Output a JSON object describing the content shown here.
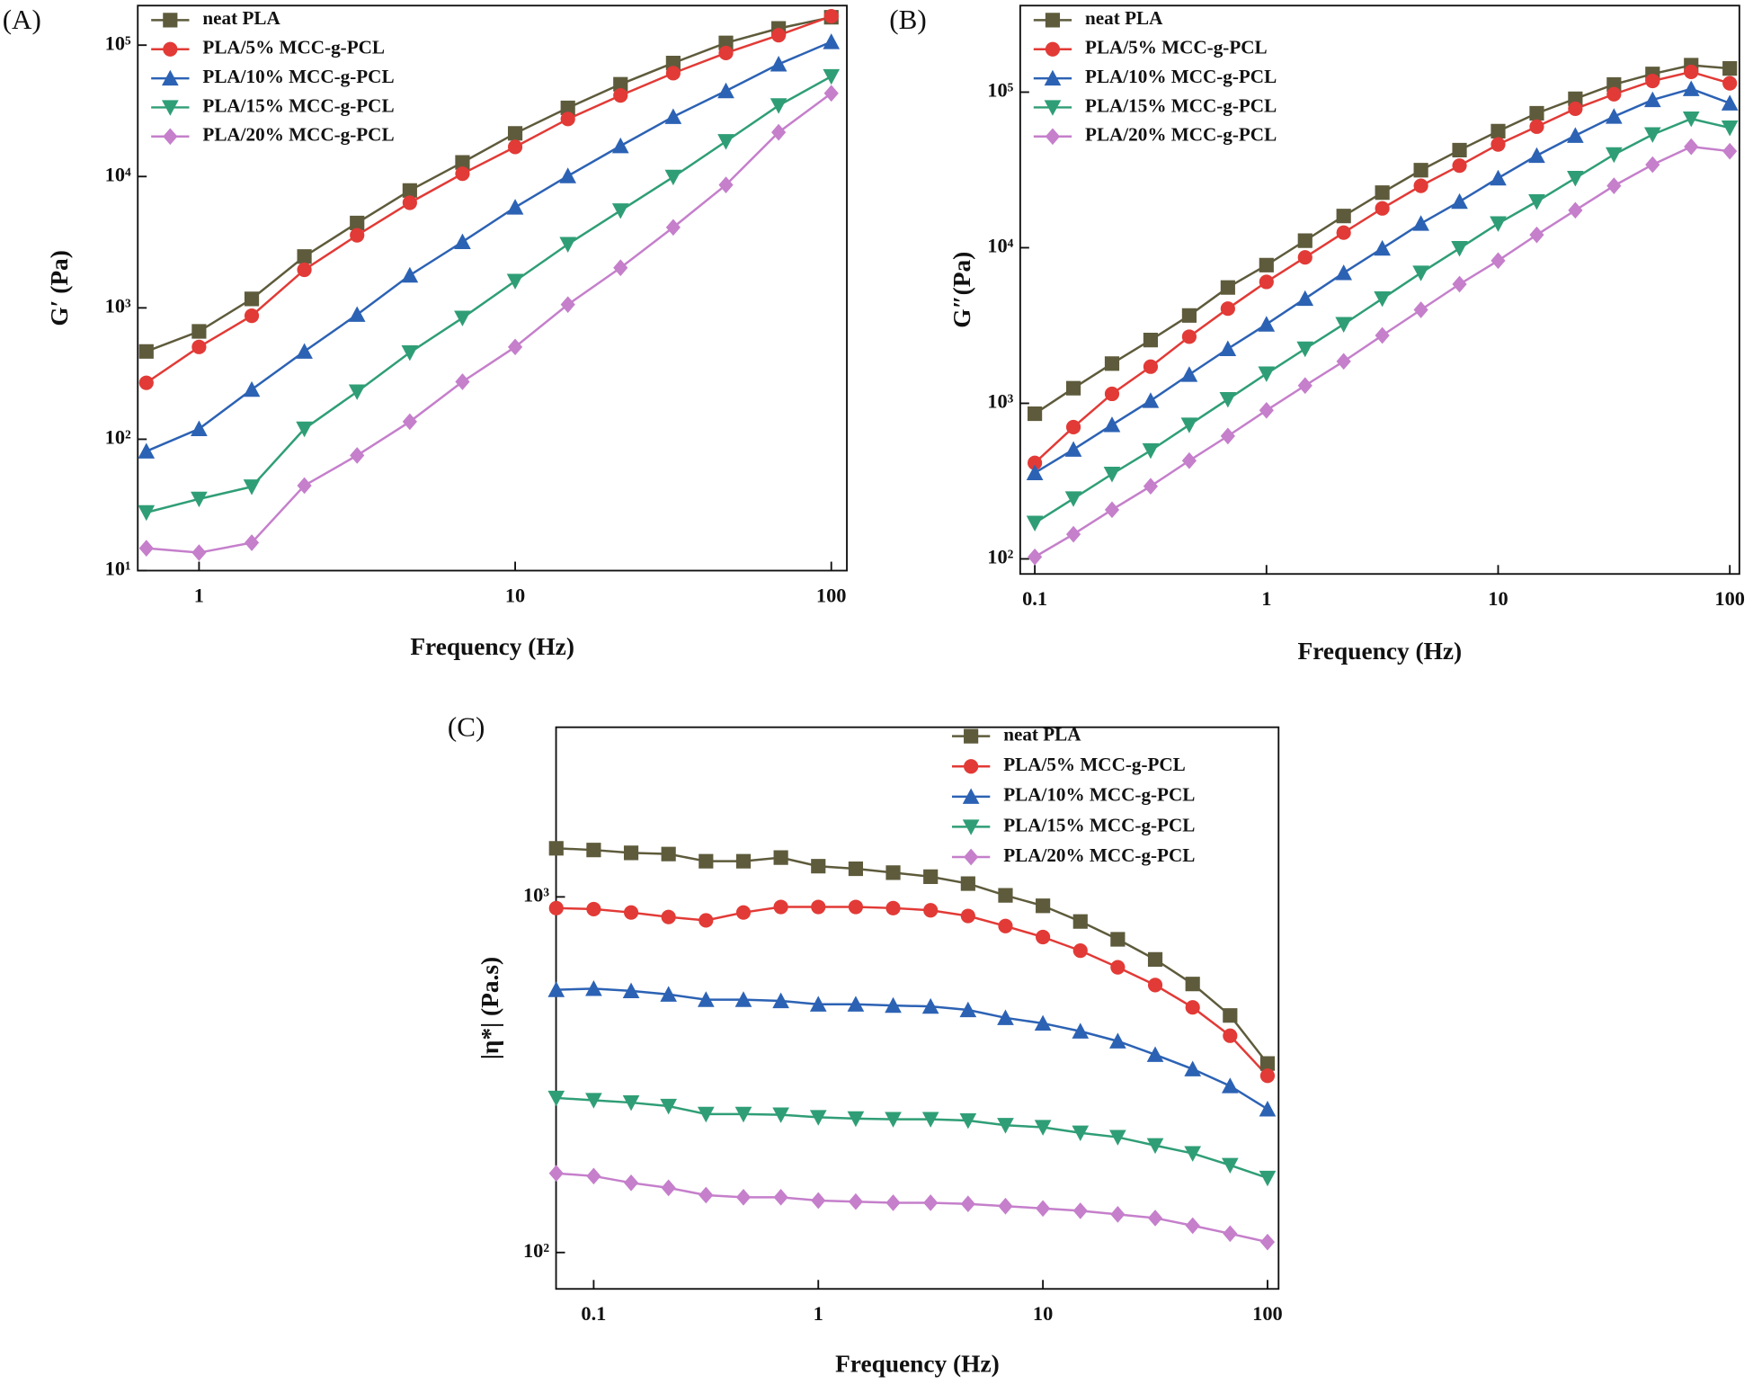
{
  "chart_data": [
    {
      "type": "line",
      "panel_label": "(A)",
      "x_label": "Frequency (Hz)",
      "y_label": "G′ (Pa)",
      "x_scale": "log",
      "y_scale": "log",
      "legend": "upper left",
      "xlim": [
        0.64,
        112
      ],
      "ylim": [
        10,
        200000
      ],
      "xticks": [
        1,
        10,
        100
      ],
      "yticks": [
        {
          "value": 10,
          "label": "10¹"
        },
        {
          "value": 100,
          "label": "10²"
        },
        {
          "value": 1000,
          "label": "10³"
        },
        {
          "value": 10000,
          "label": "10⁴"
        },
        {
          "value": 100000,
          "label": "10⁵"
        }
      ],
      "x": [
        0.6813,
        1,
        1.468,
        2.154,
        3.162,
        4.642,
        6.813,
        10,
        14.68,
        21.54,
        31.62,
        46.42,
        68.13,
        100
      ],
      "series": [
        {
          "name": "neat PLA",
          "color": "#5e5b3c",
          "marker": "square",
          "values": [
            466,
            662,
            1170,
            2460,
            4430,
            7830,
            12800,
            21300,
            33300,
            50400,
            73100,
            104000,
            134000,
            163000
          ]
        },
        {
          "name": "PLA/5% MCC-g-PCL",
          "color": "#e23a36",
          "marker": "circle",
          "values": [
            269,
            504,
            871,
            1950,
            3570,
            6310,
            10500,
            16800,
            27400,
            41400,
            61200,
            87100,
            119000,
            166000
          ]
        },
        {
          "name": "PLA/10% MCC-g-PCL",
          "color": "#2c62b4",
          "marker": "triangle-up",
          "values": [
            81,
            120,
            239,
            466,
            889,
            1770,
            3180,
            5830,
            10100,
            17100,
            28500,
            44800,
            71600,
            106000
          ]
        },
        {
          "name": "PLA/15% MCC-g-PCL",
          "color": "#2f9e76",
          "marker": "triangle-down",
          "values": [
            27.7,
            35.1,
            43.5,
            120,
            230,
            457,
            838,
            1600,
            3050,
            5500,
            9910,
            18500,
            34700,
            57800
          ]
        },
        {
          "name": "PLA/20% MCC-g-PCL",
          "color": "#c57fcb",
          "marker": "diamond",
          "values": [
            14.8,
            13.7,
            16.3,
            44.4,
            75.3,
            136,
            274,
            504,
            1060,
            2020,
            4100,
            8630,
            21700,
            43000
          ]
        }
      ]
    },
    {
      "type": "line",
      "panel_label": "(B)",
      "x_label": "Frequency (Hz)",
      "y_label": "G″(Pa)",
      "x_scale": "log",
      "y_scale": "log",
      "legend": "upper left",
      "xlim": [
        0.0865,
        110
      ],
      "ylim": [
        80,
        360000
      ],
      "xticks": [
        0.1,
        1,
        10,
        100
      ],
      "yticks": [
        {
          "value": 100,
          "label": "10²"
        },
        {
          "value": 1000,
          "label": "10³"
        },
        {
          "value": 10000,
          "label": "10⁴"
        },
        {
          "value": 100000,
          "label": "10⁵"
        }
      ],
      "x": [
        0.1,
        0.1468,
        0.2154,
        0.3162,
        0.4642,
        0.6813,
        1,
        1.468,
        2.154,
        3.162,
        4.642,
        6.813,
        10,
        14.68,
        21.54,
        31.62,
        46.42,
        68.13,
        100
      ],
      "series": [
        {
          "name": "neat PLA",
          "color": "#5e5b3c",
          "marker": "square",
          "values": [
            857,
            1250,
            1800,
            2550,
            3670,
            5550,
            7730,
            11100,
            16000,
            22600,
            31500,
            42400,
            56100,
            73100,
            90700,
            112000,
            131000,
            149000,
            142000
          ]
        },
        {
          "name": "PLA/5% MCC-g-PCL",
          "color": "#e23a36",
          "marker": "circle",
          "values": [
            414,
            703,
            1150,
            1720,
            2680,
            4060,
            6030,
            8670,
            12500,
            17900,
            25000,
            33700,
            46100,
            60000,
            78200,
            97000,
            118000,
            135000,
            114000
          ]
        },
        {
          "name": "PLA/10% MCC-g-PCL",
          "color": "#2c62b4",
          "marker": "triangle-up",
          "values": [
            357,
            505,
            727,
            1040,
            1530,
            2240,
            3220,
            4710,
            6890,
            9910,
            14300,
            19800,
            28000,
            39100,
            52600,
            69700,
            89200,
            105000,
            84900
          ]
        },
        {
          "name": "PLA/15% MCC-g-PCL",
          "color": "#2f9e76",
          "marker": "triangle-down",
          "values": [
            170,
            244,
            351,
            497,
            727,
            1060,
            1550,
            2240,
            3220,
            4710,
            6890,
            9910,
            14300,
            19800,
            28000,
            39700,
            53400,
            67400,
            59000
          ]
        },
        {
          "name": "PLA/20% MCC-g-PCL",
          "color": "#c57fcb",
          "marker": "diamond",
          "values": [
            103,
            144,
            207,
            293,
            428,
            616,
            901,
            1300,
            1860,
            2730,
            3990,
            5830,
            8260,
            12100,
            17400,
            25000,
            34200,
            44600,
            41700
          ]
        }
      ]
    },
    {
      "type": "line",
      "panel_label": "(C)",
      "x_label": "Frequency (Hz)",
      "y_label": "|η*| (Pa.s)",
      "x_scale": "log",
      "y_scale": "log",
      "legend": "upper right",
      "xlim": [
        0.068,
        112
      ],
      "ylim": [
        79,
        3000
      ],
      "xticks": [
        0.1,
        1,
        10,
        100
      ],
      "yticks": [
        {
          "value": 100,
          "label": "10²"
        },
        {
          "value": 1000,
          "label": "10³"
        }
      ],
      "x": [
        0.06813,
        0.1,
        0.1468,
        0.2154,
        0.3162,
        0.4642,
        0.6813,
        1,
        1.468,
        2.154,
        3.162,
        4.642,
        6.813,
        10,
        14.68,
        21.54,
        31.62,
        46.42,
        68.13,
        100
      ],
      "series": [
        {
          "name": "neat PLA",
          "color": "#5e5b3c",
          "marker": "square",
          "values": [
            1370,
            1355,
            1330,
            1320,
            1260,
            1260,
            1290,
            1220,
            1200,
            1170,
            1140,
            1090,
            1010,
            944,
            853,
            760,
            667,
            569,
            464,
            340
          ]
        },
        {
          "name": "PLA/5% MCC-g-PCL",
          "color": "#e23a36",
          "marker": "circle",
          "values": [
            930,
            924,
            904,
            878,
            859,
            904,
            937,
            937,
            937,
            930,
            917,
            884,
            828,
            771,
            706,
            634,
            565,
            489,
            407,
            314
          ]
        },
        {
          "name": "PLA/10% MCC-g-PCL",
          "color": "#2c62b4",
          "marker": "triangle-up",
          "values": [
            548,
            552,
            544,
            532,
            514,
            514,
            510,
            499,
            499,
            495,
            492,
            481,
            457,
            441,
            419,
            393,
            360,
            328,
            294,
            253
          ]
        },
        {
          "name": "PLA/15% MCC-g-PCL",
          "color": "#2f9e76",
          "marker": "triangle-down",
          "values": [
            272,
            268,
            264,
            258,
            245,
            245,
            244,
            240,
            238,
            237,
            237,
            235,
            228,
            225,
            217,
            211,
            200,
            190,
            176,
            162
          ]
        },
        {
          "name": "PLA/20% MCC-g-PCL",
          "color": "#c57fcb",
          "marker": "diamond",
          "values": [
            167,
            164,
            157,
            152,
            145,
            143,
            143,
            140,
            139,
            138,
            138,
            137,
            135,
            133,
            131,
            128,
            125,
            119,
            113,
            107
          ]
        }
      ]
    }
  ]
}
